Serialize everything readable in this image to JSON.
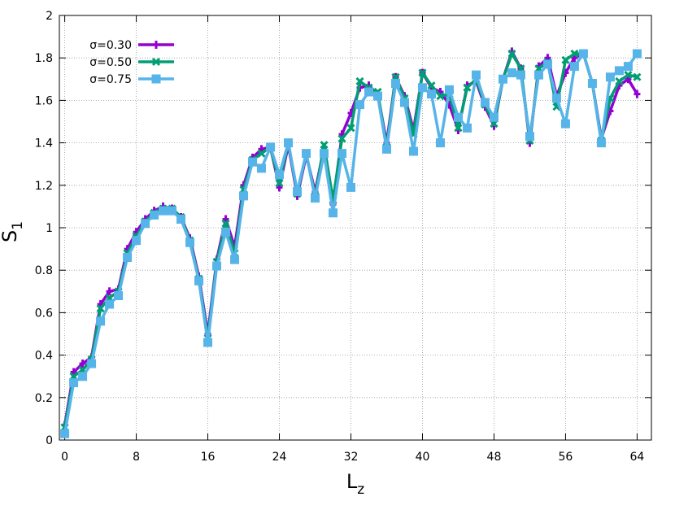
{
  "chart_data": {
    "type": "line",
    "xlabel": {
      "text": "L",
      "sub": "z"
    },
    "ylabel": {
      "text": "S",
      "sub": "1"
    },
    "x": [
      0,
      1,
      2,
      3,
      4,
      5,
      6,
      7,
      8,
      9,
      10,
      11,
      12,
      13,
      14,
      15,
      16,
      17,
      18,
      19,
      20,
      21,
      22,
      23,
      24,
      25,
      26,
      27,
      28,
      29,
      30,
      31,
      32,
      33,
      34,
      35,
      36,
      37,
      38,
      39,
      40,
      41,
      42,
      43,
      44,
      45,
      46,
      47,
      48,
      49,
      50,
      51,
      52,
      53,
      54,
      55,
      56,
      57,
      58,
      59,
      60,
      61,
      62,
      63,
      64
    ],
    "series": [
      {
        "name": "σ=0.30",
        "color": "#9400d3",
        "marker": "plus",
        "values": [
          0.07,
          0.32,
          0.36,
          0.39,
          0.64,
          0.7,
          0.71,
          0.9,
          0.98,
          1.04,
          1.08,
          1.1,
          1.09,
          1.05,
          0.95,
          0.77,
          0.5,
          0.85,
          1.04,
          0.91,
          1.2,
          1.33,
          1.37,
          1.38,
          1.19,
          1.39,
          1.15,
          1.34,
          1.17,
          1.38,
          1.11,
          1.44,
          1.54,
          1.66,
          1.67,
          1.63,
          1.4,
          1.71,
          1.62,
          1.46,
          1.73,
          1.66,
          1.64,
          1.58,
          1.46,
          1.67,
          1.69,
          1.57,
          1.48,
          1.7,
          1.83,
          1.75,
          1.4,
          1.76,
          1.8,
          1.62,
          1.73,
          1.8,
          1.82,
          1.68,
          1.42,
          1.55,
          1.67,
          1.7,
          1.63
        ]
      },
      {
        "name": "σ=0.50",
        "color": "#009e73",
        "marker": "cross",
        "values": [
          0.06,
          0.3,
          0.33,
          0.38,
          0.62,
          0.67,
          0.7,
          0.88,
          0.96,
          1.03,
          1.07,
          1.09,
          1.09,
          1.05,
          0.94,
          0.76,
          0.48,
          0.84,
          1.02,
          0.88,
          1.18,
          1.32,
          1.35,
          1.38,
          1.21,
          1.4,
          1.16,
          1.35,
          1.15,
          1.39,
          1.13,
          1.42,
          1.47,
          1.69,
          1.66,
          1.64,
          1.38,
          1.71,
          1.61,
          1.44,
          1.73,
          1.67,
          1.62,
          1.63,
          1.47,
          1.66,
          1.7,
          1.58,
          1.49,
          1.7,
          1.82,
          1.75,
          1.41,
          1.75,
          1.78,
          1.57,
          1.79,
          1.82,
          1.82,
          1.68,
          1.41,
          1.61,
          1.69,
          1.72,
          1.71
        ]
      },
      {
        "name": "σ=0.75",
        "color": "#56b4e9",
        "marker": "box",
        "values": [
          0.03,
          0.27,
          0.3,
          0.36,
          0.56,
          0.64,
          0.68,
          0.86,
          0.94,
          1.02,
          1.06,
          1.08,
          1.08,
          1.04,
          0.93,
          0.75,
          0.46,
          0.82,
          0.98,
          0.85,
          1.15,
          1.31,
          1.28,
          1.38,
          1.25,
          1.4,
          1.17,
          1.35,
          1.14,
          1.35,
          1.07,
          1.35,
          1.19,
          1.58,
          1.64,
          1.62,
          1.37,
          1.68,
          1.59,
          1.36,
          1.66,
          1.63,
          1.4,
          1.65,
          1.52,
          1.47,
          1.72,
          1.59,
          1.52,
          1.7,
          1.73,
          1.72,
          1.43,
          1.72,
          1.77,
          1.61,
          1.49,
          1.76,
          1.82,
          1.68,
          1.4,
          1.71,
          1.74,
          1.76,
          1.82
        ]
      }
    ],
    "xlim": [
      -0.6,
      65.6
    ],
    "xticks": [
      0,
      8,
      16,
      24,
      32,
      40,
      48,
      56,
      64
    ],
    "ylim": [
      0,
      2
    ],
    "yticks": [
      0,
      0.2,
      0.4,
      0.6,
      0.8,
      1,
      1.2,
      1.4,
      1.6,
      1.8,
      2
    ],
    "grid": true,
    "legend": "top-left"
  }
}
